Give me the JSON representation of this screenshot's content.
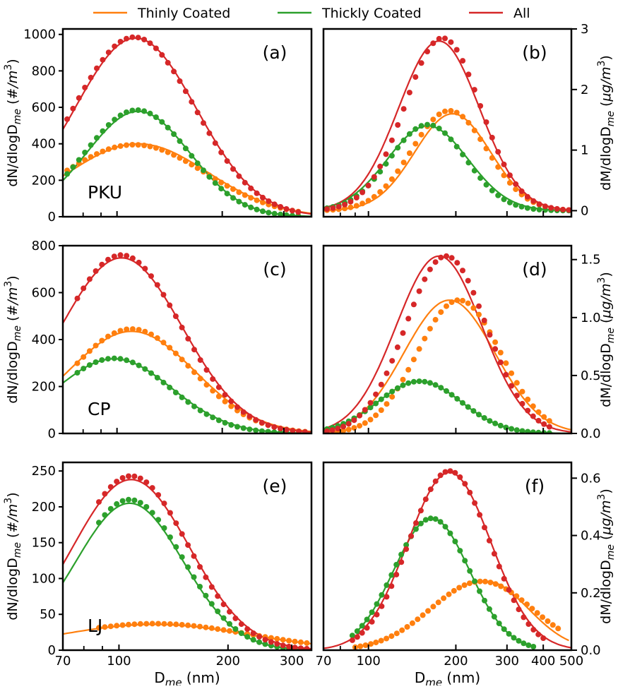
{
  "legend": [
    {
      "name": "Thinly Coated",
      "color": "#ff7f0e"
    },
    {
      "name": "Thickly Coated",
      "color": "#2ca02c"
    },
    {
      "name": "All",
      "color": "#d62728"
    }
  ],
  "axis_labels": {
    "number_y": "dN/dlogD_me (#/m^3)",
    "mass_y": "dM/dlogD_me (μg/m^3)",
    "x": "D_me (nm)"
  },
  "chart_data": [
    {
      "panel": "(a)",
      "site": "PKU",
      "type": "line+scatter",
      "quantity": "number",
      "xscale": "log",
      "xlim": [
        70,
        360
      ],
      "ylim": [
        0,
        1030
      ],
      "xticks": [
        70,
        100,
        200,
        300
      ],
      "yticks": [
        0,
        200,
        400,
        600,
        800,
        1000
      ],
      "series": [
        {
          "name": "Thinly Coated",
          "fit": {
            "peak": 400,
            "mode": 115,
            "sigma": 0.46
          },
          "points": {
            "x0": 72,
            "x1": 330,
            "n": 40,
            "peak": 395,
            "mode": 112,
            "sigma": 0.47
          }
        },
        {
          "name": "Thickly Coated",
          "fit": {
            "peak": 578,
            "mode": 115,
            "sigma": 0.34
          },
          "points": {
            "x0": 72,
            "x1": 330,
            "n": 40,
            "peak": 585,
            "mode": 114,
            "sigma": 0.34
          }
        },
        {
          "name": "All",
          "fit": {
            "peak": 980,
            "mode": 113,
            "sigma": 0.4
          },
          "points": {
            "x0": 72,
            "x1": 330,
            "n": 40,
            "peak": 985,
            "mode": 112,
            "sigma": 0.4
          }
        }
      ]
    },
    {
      "panel": "(b)",
      "site": "",
      "type": "line+scatter",
      "quantity": "mass",
      "xscale": "log",
      "xlim": [
        70,
        500
      ],
      "ylim": [
        -0.1,
        3.0
      ],
      "xticks": [
        70,
        100,
        200,
        300,
        400,
        500
      ],
      "yticks": [
        0,
        1,
        2,
        3
      ],
      "series": [
        {
          "name": "Thinly Coated",
          "fit": {
            "peak": 1.6,
            "mode": 195,
            "sigma": 0.3
          },
          "points": {
            "x0": 72,
            "x1": 490,
            "n": 42,
            "peak": 1.65,
            "mode": 190,
            "sigma": 0.3
          }
        },
        {
          "name": "Thickly Coated",
          "fit": {
            "peak": 1.4,
            "mode": 160,
            "sigma": 0.32
          },
          "points": {
            "x0": 72,
            "x1": 490,
            "n": 42,
            "peak": 1.42,
            "mode": 160,
            "sigma": 0.3
          }
        },
        {
          "name": "All",
          "fit": {
            "peak": 2.8,
            "mode": 175,
            "sigma": 0.32
          },
          "points": {
            "x0": 72,
            "x1": 490,
            "n": 42,
            "peak": 2.85,
            "mode": 180,
            "sigma": 0.3
          }
        }
      ]
    },
    {
      "panel": "(c)",
      "site": "CP",
      "type": "line+scatter",
      "quantity": "number",
      "xscale": "log",
      "xlim": [
        70,
        360
      ],
      "ylim": [
        0,
        800
      ],
      "xticks": [
        70,
        100,
        200,
        300
      ],
      "yticks": [
        0,
        200,
        400,
        600,
        800
      ],
      "series": [
        {
          "name": "Thinly Coated",
          "fit": {
            "peak": 435,
            "mode": 110,
            "sigma": 0.42
          },
          "points": {
            "x0": 77,
            "x1": 345,
            "n": 38,
            "peak": 445,
            "mode": 110,
            "sigma": 0.4
          }
        },
        {
          "name": "Thickly Coated",
          "fit": {
            "peak": 318,
            "mode": 98,
            "sigma": 0.38
          },
          "points": {
            "x0": 77,
            "x1": 345,
            "n": 38,
            "peak": 320,
            "mode": 98,
            "sigma": 0.37
          }
        },
        {
          "name": "All",
          "fit": {
            "peak": 748,
            "mode": 103,
            "sigma": 0.4
          },
          "points": {
            "x0": 77,
            "x1": 345,
            "n": 38,
            "peak": 760,
            "mode": 103,
            "sigma": 0.39
          }
        }
      ]
    },
    {
      "panel": "(d)",
      "site": "",
      "type": "line+scatter",
      "quantity": "mass",
      "xscale": "log",
      "xlim": [
        70,
        500
      ],
      "ylim": [
        0,
        1.62
      ],
      "xticks": [
        70,
        100,
        200,
        300,
        400,
        500
      ],
      "yticks": [
        0.0,
        0.5,
        1.0,
        1.5
      ],
      "series": [
        {
          "name": "Thinly Coated",
          "fit": {
            "peak": 1.15,
            "mode": 190,
            "sigma": 0.36
          },
          "points": {
            "x0": 72,
            "x1": 420,
            "n": 42,
            "peak": 1.15,
            "mode": 205,
            "sigma": 0.33
          }
        },
        {
          "name": "Thickly Coated",
          "fit": {
            "peak": 0.45,
            "mode": 150,
            "sigma": 0.33
          },
          "points": {
            "x0": 72,
            "x1": 420,
            "n": 42,
            "peak": 0.45,
            "mode": 150,
            "sigma": 0.33
          }
        },
        {
          "name": "All",
          "fit": {
            "peak": 1.53,
            "mode": 175,
            "sigma": 0.34
          },
          "points": {
            "x0": 72,
            "x1": 420,
            "n": 42,
            "peak": 1.53,
            "mode": 185,
            "sigma": 0.32
          }
        }
      ]
    },
    {
      "panel": "(e)",
      "site": "LJ",
      "type": "line+scatter",
      "quantity": "number",
      "xscale": "log",
      "xlim": [
        70,
        340
      ],
      "ylim": [
        0,
        262
      ],
      "xticks": [
        70,
        100,
        200,
        300
      ],
      "yticks": [
        0,
        50,
        100,
        150,
        200,
        250
      ],
      "series": [
        {
          "name": "Thinly Coated",
          "fit": {
            "peak": 36,
            "mode": 125,
            "sigma": 0.6
          },
          "points": {
            "x0": 88,
            "x1": 330,
            "n": 36,
            "peak": 37,
            "mode": 125,
            "sigma": 0.6
          }
        },
        {
          "name": "Thickly Coated",
          "fit": {
            "peak": 205,
            "mode": 107,
            "sigma": 0.34
          },
          "points": {
            "x0": 88,
            "x1": 330,
            "n": 36,
            "peak": 210,
            "mode": 107,
            "sigma": 0.34
          }
        },
        {
          "name": "All",
          "fit": {
            "peak": 238,
            "mode": 108,
            "sigma": 0.37
          },
          "points": {
            "x0": 88,
            "x1": 330,
            "n": 36,
            "peak": 243,
            "mode": 108,
            "sigma": 0.36
          }
        }
      ]
    },
    {
      "panel": "(f)",
      "site": "",
      "type": "line+scatter",
      "quantity": "mass",
      "xscale": "log",
      "xlim": [
        70,
        500
      ],
      "ylim": [
        0,
        0.655
      ],
      "xticks": [
        70,
        100,
        200,
        300,
        400,
        500
      ],
      "yticks": [
        0.0,
        0.2,
        0.4,
        0.6
      ],
      "series": [
        {
          "name": "Thinly Coated",
          "fit": {
            "peak": 0.24,
            "mode": 255,
            "sigma": 0.33,
            "x0": 250,
            "x1": 490
          },
          "points": {
            "x0": 90,
            "x1": 450,
            "n": 40,
            "peak": 0.24,
            "mode": 245,
            "sigma": 0.4
          }
        },
        {
          "name": "Thickly Coated",
          "fit": {
            "peak": 0.46,
            "mode": 165,
            "sigma": 0.3,
            "x0": 90,
            "x1": 370
          },
          "points": {
            "x0": 88,
            "x1": 370,
            "n": 38,
            "peak": 0.46,
            "mode": 165,
            "sigma": 0.3
          }
        },
        {
          "name": "All",
          "fit": {
            "peak": 0.62,
            "mode": 190,
            "sigma": 0.33
          },
          "points": {
            "x0": 88,
            "x1": 400,
            "n": 40,
            "peak": 0.625,
            "mode": 190,
            "sigma": 0.32
          }
        }
      ]
    }
  ]
}
